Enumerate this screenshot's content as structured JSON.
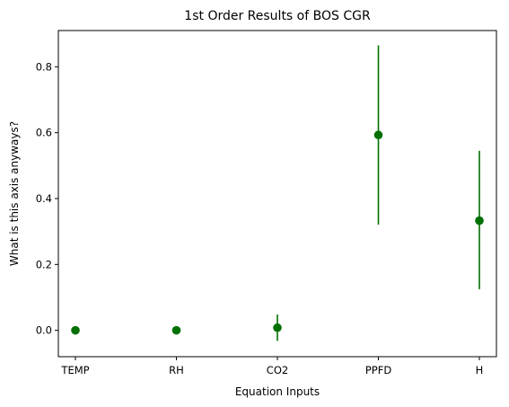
{
  "chart_data": {
    "type": "scatter",
    "title": "1st Order Results of BOS CGR",
    "xlabel": "Equation Inputs",
    "ylabel": "What is this axis anyways?",
    "categories": [
      "TEMP",
      "RH",
      "CO2",
      "PPFD",
      "H"
    ],
    "values": [
      0.0,
      0.0,
      0.008,
      0.593,
      0.333
    ],
    "error_low": [
      0.0,
      0.0,
      -0.032,
      0.321,
      0.125
    ],
    "error_high": [
      0.0,
      0.0,
      0.048,
      0.865,
      0.545
    ],
    "ylim": [
      -0.08,
      0.91
    ],
    "yticks": [
      0.0,
      0.2,
      0.4,
      0.6,
      0.8
    ],
    "ytick_labels": [
      "0.0",
      "0.2",
      "0.4",
      "0.6",
      "0.8"
    ],
    "grid": false,
    "color": "#007000"
  }
}
